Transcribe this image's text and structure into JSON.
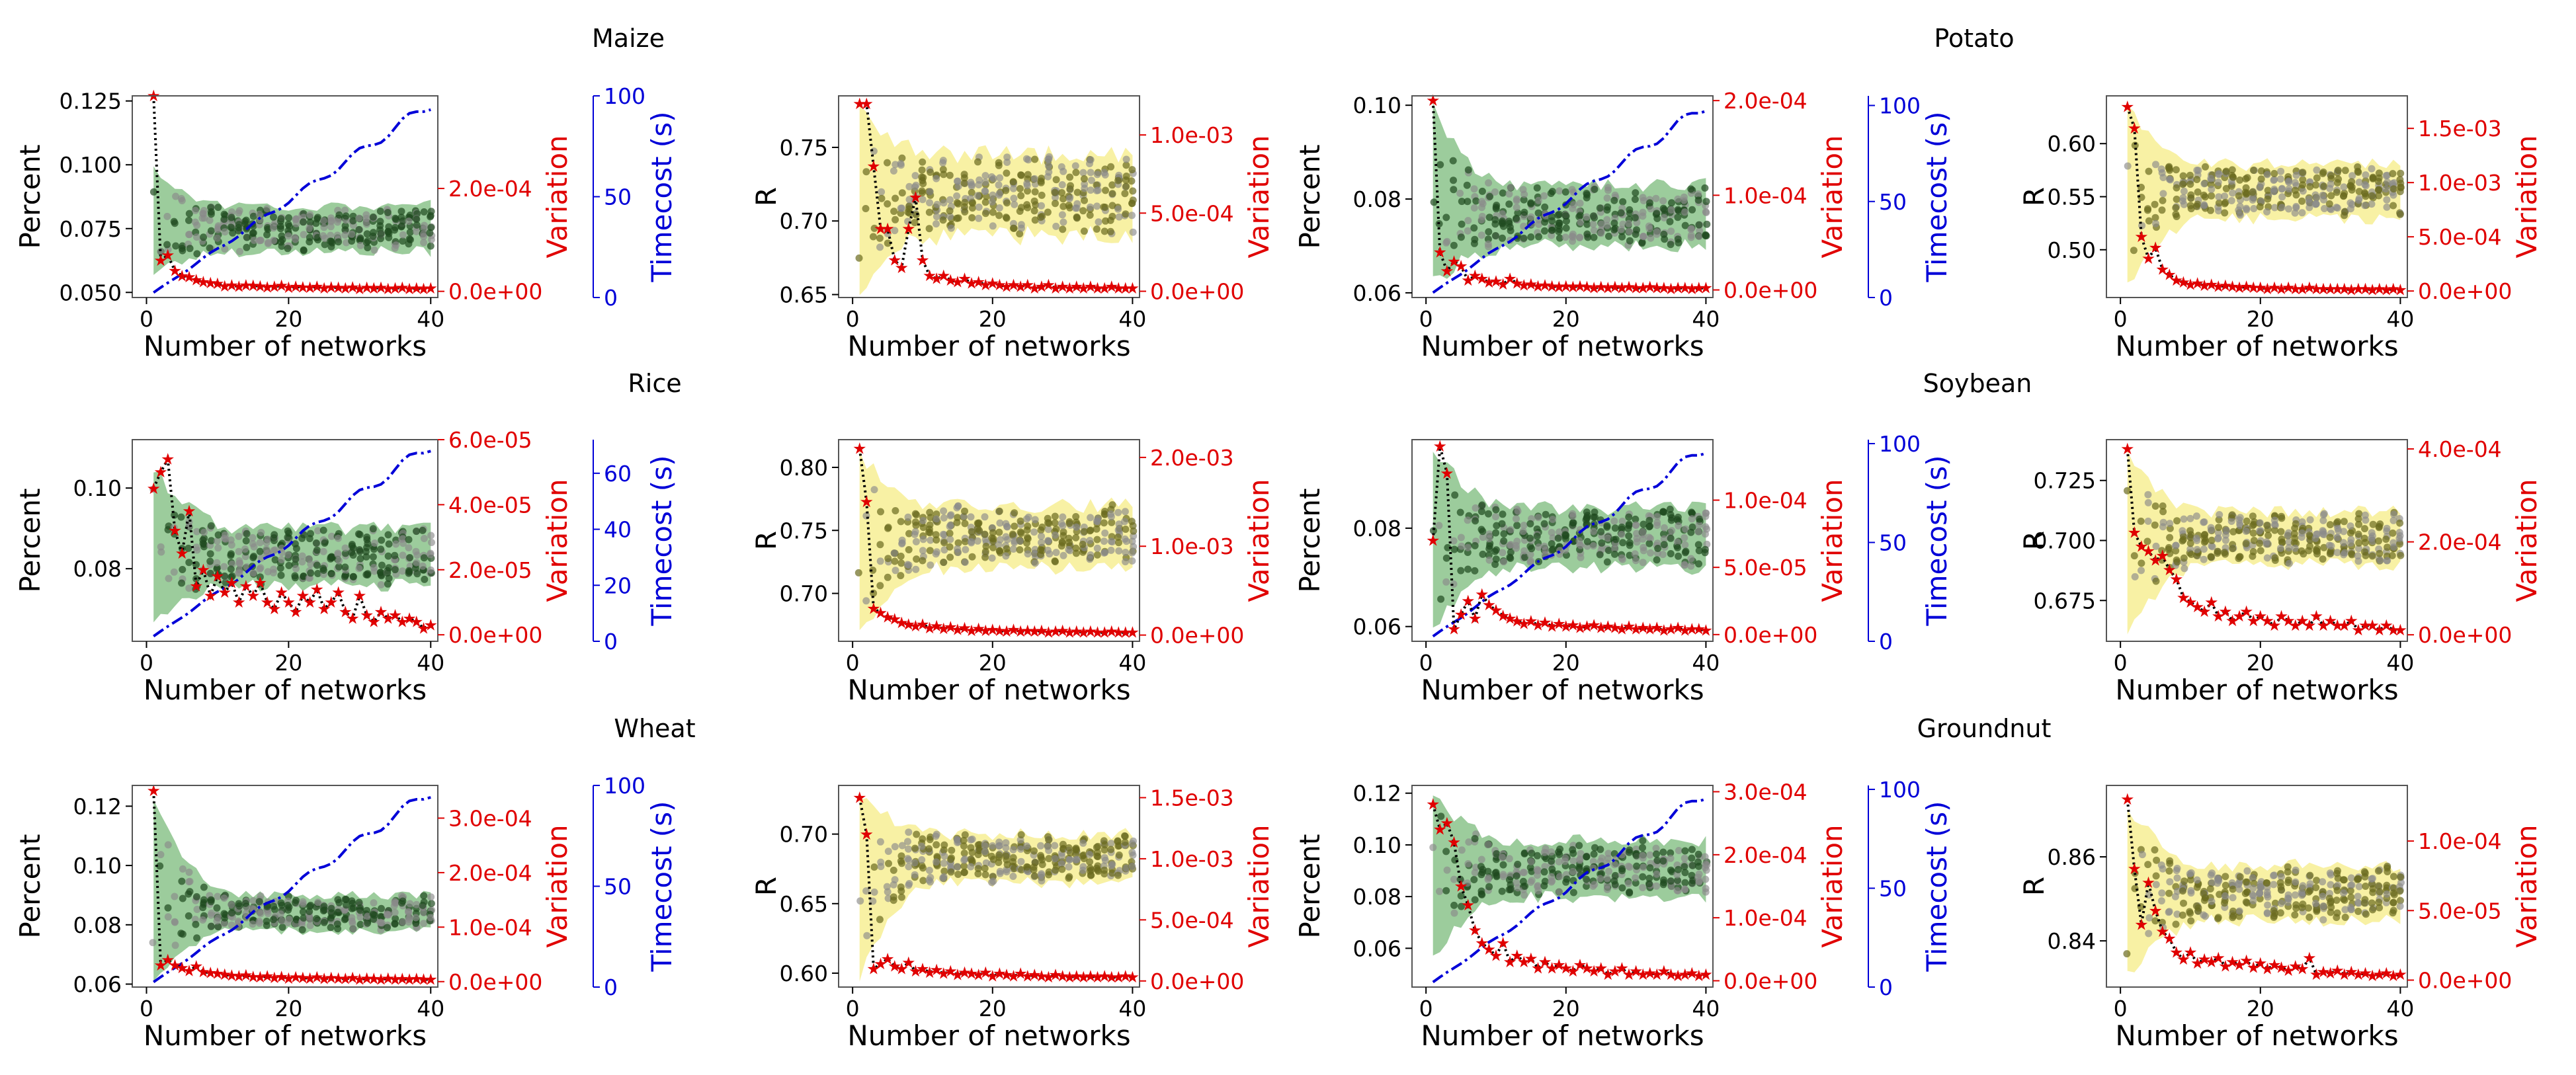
{
  "figure": {
    "crop_titles": [
      "Maize",
      "Potato",
      "Rice",
      "Soybean",
      "Wheat",
      "Groundnut"
    ],
    "colors": {
      "percent_band": "#3a9a3a",
      "percent_points": "#1f4a1f",
      "r_band": "#f2e65a",
      "r_points": "#6b6b1f",
      "gray_points": "#8a8a8a",
      "variation": "#e00000",
      "timecost": "#0000d8"
    }
  },
  "chart_data": [
    {
      "type": "scatter",
      "panel": "maize-percent",
      "crop": "Maize",
      "title": "Maize",
      "metric": "Percent",
      "xlabel": "Number of networks",
      "ylabel": "Percent",
      "y2label": "Variation",
      "y3label": "Timecost (s)",
      "xlim": [
        -2,
        41
      ],
      "ylim": [
        0.048,
        0.127
      ],
      "y2lim": [
        -1.2e-05,
        0.00038
      ],
      "y3lim": [
        0,
        100
      ],
      "xticks": [
        "0",
        "20",
        "40"
      ],
      "yticks": [
        "0.050",
        "0.075",
        "0.100",
        "0.125"
      ],
      "y2ticks": [
        "0.0e+00",
        "2.0e-04"
      ],
      "y3ticks": [
        "0",
        "50",
        "100"
      ],
      "spread": {
        "min_start": 0.058,
        "max_start": 0.098,
        "min_end": 0.066,
        "max_end": 0.084,
        "center": 0.076
      },
      "variation": [
        0.00038,
        6e-05,
        7e-05,
        4e-05,
        3e-05,
        2.8e-05,
        2.2e-05,
        1.8e-05,
        1.6e-05,
        1.5e-05,
        1e-05,
        1.2e-05,
        9e-06,
        1.2e-05,
        1.1e-05,
        1e-05,
        8e-06,
        9e-06,
        1.1e-05,
        7e-06,
        9e-06,
        8e-06,
        7e-06,
        9e-06,
        6e-06,
        8e-06,
        7e-06,
        6e-06,
        8e-06,
        5e-06,
        7e-06,
        6e-06,
        7e-06,
        5e-06,
        6e-06,
        7e-06,
        5e-06,
        6e-06,
        5e-06,
        6e-06
      ],
      "timecost_end": 96
    },
    {
      "type": "scatter",
      "panel": "maize-r",
      "crop": "Maize",
      "title": "",
      "metric": "R",
      "xlabel": "Number of networks",
      "ylabel": "R",
      "y2label": "Variation",
      "y3label": "",
      "xlim": [
        -2,
        41
      ],
      "ylim": [
        0.648,
        0.785
      ],
      "y2lim": [
        -4e-05,
        0.00125
      ],
      "xticks": [
        "0",
        "20",
        "40"
      ],
      "yticks": [
        "0.65",
        "0.70",
        "0.75"
      ],
      "y2ticks": [
        "0.0e+00",
        "5.0e-04",
        "1.0e-03"
      ],
      "y3ticks": [],
      "spread": {
        "min_start": 0.655,
        "max_start": 0.78,
        "min_end": 0.69,
        "max_end": 0.745,
        "center": 0.72
      },
      "variation": [
        0.0012,
        0.0012,
        0.0008,
        0.0004,
        0.0004,
        0.0002,
        0.00015,
        0.0004,
        0.0006,
        0.0002,
        0.0001,
        8e-05,
        0.0001,
        7e-05,
        6e-05,
        8e-05,
        5e-05,
        6e-05,
        4e-05,
        5e-05,
        4e-05,
        3e-05,
        4e-05,
        3e-05,
        4e-05,
        2e-05,
        3e-05,
        4e-05,
        2e-05,
        3e-05,
        2e-05,
        3e-05,
        2e-05,
        3e-05,
        2e-05,
        2e-05,
        3e-05,
        2e-05,
        2e-05,
        2e-05
      ],
      "timecost_end": null
    },
    {
      "type": "scatter",
      "panel": "potato-percent",
      "crop": "Potato",
      "title": "Potato",
      "metric": "Percent",
      "xlabel": "Number of networks",
      "ylabel": "Percent",
      "y2label": "Variation",
      "y3label": "Timecost (s)",
      "xlim": [
        -2,
        41
      ],
      "ylim": [
        0.059,
        0.102
      ],
      "y2lim": [
        -8e-06,
        0.000205
      ],
      "y3lim": [
        0,
        105
      ],
      "xticks": [
        "0",
        "20",
        "40"
      ],
      "yticks": [
        "0.06",
        "0.08",
        "0.10"
      ],
      "y2ticks": [
        "0.0e+00",
        "1.0e-04",
        "2.0e-04"
      ],
      "y3ticks": [
        "0",
        "50",
        "100"
      ],
      "spread": {
        "min_start": 0.062,
        "max_start": 0.099,
        "min_end": 0.07,
        "max_end": 0.083,
        "center": 0.077
      },
      "variation": [
        0.0002,
        4e-05,
        2e-05,
        3e-05,
        2.5e-05,
        1e-05,
        1.5e-05,
        1.2e-05,
        8e-06,
        9e-06,
        6e-06,
        1.2e-05,
        7e-06,
        5e-06,
        6e-06,
        4e-06,
        5e-06,
        4e-06,
        3e-06,
        4e-06,
        3e-06,
        4e-06,
        3e-06,
        2e-06,
        3e-06,
        2e-06,
        3e-06,
        2e-06,
        3e-06,
        2e-06,
        2e-06,
        3e-06,
        2e-06,
        2e-06,
        1e-06,
        2e-06,
        2e-06,
        1e-06,
        2e-06,
        2e-06
      ],
      "timecost_end": 100
    },
    {
      "type": "scatter",
      "panel": "potato-r",
      "crop": "Potato",
      "title": "",
      "metric": "R",
      "xlabel": "Number of networks",
      "ylabel": "R",
      "y2label": "Variation",
      "y3label": "",
      "xlim": [
        -2,
        41
      ],
      "ylim": [
        0.455,
        0.645
      ],
      "y2lim": [
        -6e-05,
        0.0018
      ],
      "xticks": [
        "0",
        "20",
        "40"
      ],
      "yticks": [
        "0.50",
        "0.55",
        "0.60"
      ],
      "y2ticks": [
        "0.0e+00",
        "5.0e-04",
        "1.0e-03",
        "1.5e-03"
      ],
      "y3ticks": [],
      "spread": {
        "min_start": 0.465,
        "max_start": 0.635,
        "min_end": 0.53,
        "max_end": 0.58,
        "center": 0.56
      },
      "variation": [
        0.0017,
        0.0015,
        0.0005,
        0.0003,
        0.0004,
        0.0002,
        0.00015,
        0.0001,
        8e-05,
        6e-05,
        7e-05,
        5e-05,
        6e-05,
        4e-05,
        5e-05,
        4e-05,
        3e-05,
        4e-05,
        3e-05,
        3e-05,
        2e-05,
        3e-05,
        2e-05,
        3e-05,
        2e-05,
        2e-05,
        3e-05,
        2e-05,
        2e-05,
        2e-05,
        2e-05,
        2e-05,
        1e-05,
        2e-05,
        2e-05,
        1e-05,
        2e-05,
        1e-05,
        2e-05,
        1e-05
      ],
      "timecost_end": null
    },
    {
      "type": "scatter",
      "panel": "rice-percent",
      "crop": "Rice",
      "title": "Rice",
      "metric": "Percent",
      "xlabel": "Number of networks",
      "ylabel": "Percent",
      "y2label": "Variation",
      "y3label": "Timecost (s)",
      "xlim": [
        -2,
        41
      ],
      "ylim": [
        0.062,
        0.112
      ],
      "y2lim": [
        -2e-06,
        6e-05
      ],
      "y3lim": [
        0,
        72
      ],
      "xticks": [
        "0",
        "20",
        "40"
      ],
      "yticks": [
        "0.08",
        "0.10"
      ],
      "y2ticks": [
        "0.0e+00",
        "2.0e-05",
        "4.0e-05",
        "6.0e-05"
      ],
      "y3ticks": [
        "0",
        "20",
        "40",
        "60"
      ],
      "spread": {
        "min_start": 0.066,
        "max_start": 0.105,
        "min_end": 0.076,
        "max_end": 0.09,
        "center": 0.082
      },
      "variation": [
        4.5e-05,
        5e-05,
        5.4e-05,
        3.2e-05,
        2.5e-05,
        3.8e-05,
        1.5e-05,
        2e-05,
        1.2e-05,
        1.8e-05,
        1.3e-05,
        1.6e-05,
        1e-05,
        1.5e-05,
        1.2e-05,
        1.6e-05,
        1e-05,
        8e-06,
        1.3e-05,
        1e-05,
        7e-06,
        1.2e-05,
        1e-05,
        1.4e-05,
        8e-06,
        1e-05,
        1.3e-05,
        7e-06,
        5e-06,
        1.2e-05,
        6e-06,
        4e-06,
        7e-06,
        5e-06,
        6e-06,
        4e-06,
        5e-06,
        4e-06,
        2e-06,
        3e-06
      ],
      "timecost_end": 70
    },
    {
      "type": "scatter",
      "panel": "rice-r",
      "crop": "Rice",
      "title": "",
      "metric": "R",
      "xlabel": "Number of networks",
      "ylabel": "R",
      "y2label": "Variation",
      "y3label": "",
      "xlim": [
        -2,
        41
      ],
      "ylim": [
        0.662,
        0.822
      ],
      "y2lim": [
        -7e-05,
        0.0022
      ],
      "xticks": [
        "0",
        "20",
        "40"
      ],
      "yticks": [
        "0.70",
        "0.75",
        "0.80"
      ],
      "y2ticks": [
        "0.0e+00",
        "1.0e-03",
        "2.0e-03"
      ],
      "y3ticks": [],
      "spread": {
        "min_start": 0.67,
        "max_start": 0.81,
        "min_end": 0.72,
        "max_end": 0.77,
        "center": 0.745
      },
      "variation": [
        0.0021,
        0.0015,
        0.0003,
        0.00025,
        0.0002,
        0.00018,
        0.00014,
        0.00012,
        0.0001,
        0.00012,
        8e-05,
        0.0001,
        7e-05,
        9e-05,
        6e-05,
        8e-05,
        5e-05,
        7e-05,
        5e-05,
        6e-05,
        5e-05,
        4e-05,
        6e-05,
        4e-05,
        5e-05,
        4e-05,
        5e-05,
        3e-05,
        4e-05,
        5e-05,
        3e-05,
        4e-05,
        3e-05,
        4e-05,
        3e-05,
        3e-05,
        4e-05,
        3e-05,
        3e-05,
        3e-05
      ],
      "timecost_end": null
    },
    {
      "type": "scatter",
      "panel": "soybean-percent",
      "crop": "Soybean",
      "title": "Soybean",
      "metric": "Percent",
      "xlabel": "Number of networks",
      "ylabel": "Percent",
      "y2label": "Variation",
      "y3label": "Timecost (s)",
      "xlim": [
        -2,
        41
      ],
      "ylim": [
        0.057,
        0.098
      ],
      "y2lim": [
        -5e-06,
        0.000145
      ],
      "y3lim": [
        0,
        102
      ],
      "xticks": [
        "0",
        "20",
        "40"
      ],
      "yticks": [
        "0.06",
        "0.08"
      ],
      "y2ticks": [
        "0.0e+00",
        "5.0e-05",
        "1.0e-04"
      ],
      "y3ticks": [
        "0",
        "50",
        "100"
      ],
      "spread": {
        "min_start": 0.06,
        "max_start": 0.096,
        "min_end": 0.072,
        "max_end": 0.084,
        "center": 0.079
      },
      "variation": [
        7e-05,
        0.00014,
        0.00012,
        4e-06,
        1.5e-05,
        2.5e-05,
        1.2e-05,
        3e-05,
        2.2e-05,
        1.8e-05,
        1.4e-05,
        1.2e-05,
        1e-05,
        8e-06,
        1e-05,
        7e-06,
        9e-06,
        6e-06,
        8e-06,
        6e-06,
        7e-06,
        5e-06,
        6e-06,
        7e-06,
        5e-06,
        6e-06,
        5e-06,
        4e-06,
        6e-06,
        4e-06,
        5e-06,
        4e-06,
        5e-06,
        3e-06,
        4e-06,
        5e-06,
        3e-06,
        4e-06,
        4e-06,
        3e-06
      ],
      "timecost_end": 98
    },
    {
      "type": "scatter",
      "panel": "soybean-r",
      "crop": "Soybean",
      "title": "",
      "metric": "R",
      "xlabel": "Number of networks",
      "ylabel": "R",
      "y2label": "Variation",
      "y3label": "",
      "xlim": [
        -2,
        41
      ],
      "ylim": [
        0.658,
        0.742
      ],
      "y2lim": [
        -1.4e-05,
        0.00042
      ],
      "xticks": [
        "0",
        "20",
        "40"
      ],
      "yticks": [
        "0.675",
        "0.700",
        "0.725"
      ],
      "y2ticks": [
        "0.0e+00",
        "2.0e-04",
        "4.0e-04"
      ],
      "y3ticks": [],
      "spread": {
        "min_start": 0.662,
        "max_start": 0.735,
        "min_end": 0.69,
        "max_end": 0.712,
        "center": 0.701
      },
      "variation": [
        0.0004,
        0.00022,
        0.00019,
        0.00018,
        0.00016,
        0.00017,
        0.00014,
        0.00012,
        8e-05,
        7e-05,
        6e-05,
        5e-05,
        7e-05,
        4e-05,
        5e-05,
        3e-05,
        4e-05,
        5e-05,
        3e-05,
        4e-05,
        3e-05,
        2e-05,
        4e-05,
        3e-05,
        2e-05,
        3e-05,
        2e-05,
        4e-05,
        2e-05,
        3e-05,
        2e-05,
        2e-05,
        3e-05,
        1e-05,
        2e-05,
        2e-05,
        1e-05,
        2e-05,
        1e-05,
        1e-05
      ],
      "timecost_end": null
    },
    {
      "type": "scatter",
      "panel": "wheat-percent",
      "crop": "Wheat",
      "title": "Wheat",
      "metric": "Percent",
      "xlabel": "Number of networks",
      "ylabel": "Percent",
      "y2label": "Variation",
      "y3label": "Timecost (s)",
      "xlim": [
        -2,
        41
      ],
      "ylim": [
        0.059,
        0.127
      ],
      "y2lim": [
        -1e-05,
        0.00036
      ],
      "y3lim": [
        0,
        100
      ],
      "xticks": [
        "0",
        "20",
        "40"
      ],
      "yticks": [
        "0.06",
        "0.08",
        "0.10",
        "0.12"
      ],
      "y2ticks": [
        "0.0e+00",
        "1.0e-04",
        "2.0e-04",
        "3.0e-04"
      ],
      "y3ticks": [
        "0",
        "50",
        "100"
      ],
      "spread": {
        "min_start": 0.062,
        "max_start": 0.122,
        "min_end": 0.078,
        "max_end": 0.09,
        "center": 0.084
      },
      "variation": [
        0.00035,
        3e-05,
        4e-05,
        3e-05,
        2.5e-05,
        2e-05,
        2.8e-05,
        1.8e-05,
        1.6e-05,
        1.5e-05,
        1.3e-05,
        1.1e-05,
        1e-05,
        1.2e-05,
        9e-06,
        8e-06,
        1e-05,
        7e-06,
        9e-06,
        6e-06,
        8e-06,
        7e-06,
        6e-06,
        8e-06,
        5e-06,
        7e-06,
        6e-06,
        5e-06,
        7e-06,
        4e-06,
        6e-06,
        5e-06,
        4e-06,
        6e-06,
        4e-06,
        5e-06,
        4e-06,
        5e-06,
        4e-06,
        4e-06
      ],
      "timecost_end": 97
    },
    {
      "type": "scatter",
      "panel": "wheat-r",
      "crop": "Wheat",
      "title": "",
      "metric": "R",
      "xlabel": "Number of networks",
      "ylabel": "R",
      "y2label": "Variation",
      "y3label": "",
      "xlim": [
        -2,
        41
      ],
      "ylim": [
        0.59,
        0.735
      ],
      "y2lim": [
        -5e-05,
        0.0016
      ],
      "xticks": [
        "0",
        "20",
        "40"
      ],
      "yticks": [
        "0.60",
        "0.65",
        "0.70"
      ],
      "y2ticks": [
        "0.0e+00",
        "5.0e-04",
        "1.0e-03",
        "1.5e-03"
      ],
      "y3ticks": [],
      "spread": {
        "min_start": 0.598,
        "max_start": 0.728,
        "min_end": 0.665,
        "max_end": 0.7,
        "center": 0.683
      },
      "variation": [
        0.0015,
        0.0012,
        0.0001,
        0.00014,
        0.00018,
        0.00012,
        0.0001,
        0.00015,
        8e-05,
        0.0001,
        7e-05,
        9e-05,
        6e-05,
        8e-05,
        5e-05,
        7e-05,
        6e-05,
        5e-05,
        7e-05,
        4e-05,
        6e-05,
        5e-05,
        4e-05,
        6e-05,
        4e-05,
        5e-05,
        4e-05,
        3e-05,
        5e-05,
        4e-05,
        3e-05,
        4e-05,
        3e-05,
        4e-05,
        3e-05,
        4e-05,
        3e-05,
        3e-05,
        4e-05,
        3e-05
      ],
      "timecost_end": null
    },
    {
      "type": "scatter",
      "panel": "groundnut-percent",
      "crop": "Groundnut",
      "title": "Groundnut",
      "metric": "Percent",
      "xlabel": "Number of networks",
      "ylabel": "Percent",
      "y2label": "Variation",
      "y3label": "Timecost (s)",
      "xlim": [
        -2,
        41
      ],
      "ylim": [
        0.045,
        0.123
      ],
      "y2lim": [
        -1e-05,
        0.00031
      ],
      "y3lim": [
        0,
        102
      ],
      "xticks": [
        "0",
        "20",
        "40"
      ],
      "yticks": [
        "0.06",
        "0.08",
        "0.10",
        "0.12"
      ],
      "y2ticks": [
        "0.0e+00",
        "1.0e-04",
        "2.0e-04",
        "3.0e-04"
      ],
      "y3ticks": [
        "0",
        "50",
        "100"
      ],
      "spread": {
        "min_start": 0.055,
        "max_start": 0.118,
        "min_end": 0.08,
        "max_end": 0.102,
        "center": 0.09
      },
      "variation": [
        0.00028,
        0.00024,
        0.00025,
        0.00022,
        0.00015,
        0.00012,
        8e-05,
        6e-05,
        5e-05,
        4e-05,
        6e-05,
        3e-05,
        4e-05,
        3e-05,
        3.5e-05,
        2e-05,
        3e-05,
        2e-05,
        2.5e-05,
        2e-05,
        1.5e-05,
        2.5e-05,
        2e-05,
        1.5e-05,
        2e-05,
        1e-05,
        1.5e-05,
        2e-05,
        1e-05,
        1.5e-05,
        1e-05,
        1.2e-05,
        1e-05,
        1.5e-05,
        1e-05,
        8e-06,
        1e-05,
        1.2e-05,
        8e-06,
        1e-05
      ],
      "timecost_end": 98
    },
    {
      "type": "scatter",
      "panel": "groundnut-r",
      "crop": "Groundnut",
      "title": "",
      "metric": "R",
      "xlabel": "Number of networks",
      "ylabel": "R",
      "y2label": "Variation",
      "y3label": "",
      "xlim": [
        -2,
        41
      ],
      "ylim": [
        0.829,
        0.877
      ],
      "y2lim": [
        -5e-06,
        0.00014
      ],
      "xticks": [
        "0",
        "20",
        "40"
      ],
      "yticks": [
        "0.84",
        "0.86"
      ],
      "y2ticks": [
        "0.0e+00",
        "5.0e-05",
        "1.0e-04"
      ],
      "y3ticks": [],
      "spread": {
        "min_start": 0.832,
        "max_start": 0.872,
        "min_end": 0.845,
        "max_end": 0.858,
        "center": 0.851
      },
      "variation": [
        0.00013,
        8e-05,
        4e-05,
        7e-05,
        5e-05,
        3.5e-05,
        3e-05,
        2e-05,
        1.5e-05,
        2e-05,
        1.2e-05,
        1.5e-05,
        1.3e-05,
        1.6e-05,
        1e-05,
        1.3e-05,
        1.1e-05,
        1.4e-05,
        9e-06,
        1.2e-05,
        8e-06,
        1.1e-05,
        9e-06,
        7e-06,
        1e-05,
        8e-06,
        1.6e-05,
        4e-06,
        6e-06,
        5e-06,
        7e-06,
        4e-06,
        6e-06,
        4e-06,
        5e-06,
        3e-06,
        4e-06,
        5e-06,
        3e-06,
        4e-06
      ],
      "timecost_end": null
    }
  ]
}
